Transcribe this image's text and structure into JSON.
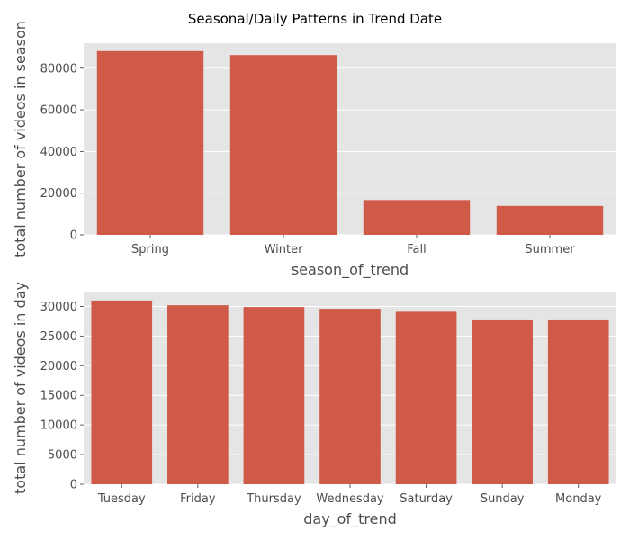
{
  "figure": {
    "title": "Seasonal/Daily Patterns in Trend Date",
    "bar_color": "#cf5a47",
    "background_color": "#e5e5e5",
    "grid_color": "#ffffff"
  },
  "chart_data": [
    {
      "type": "bar",
      "categories": [
        "Spring",
        "Winter",
        "Fall",
        "Summer"
      ],
      "values": [
        88200,
        86300,
        16700,
        13900
      ],
      "xlabel": "season_of_trend",
      "ylabel": "total number of videos in season",
      "ylim": [
        0,
        92000
      ],
      "yticks": [
        0,
        20000,
        40000,
        60000,
        80000
      ],
      "grid": true
    },
    {
      "type": "bar",
      "categories": [
        "Tuesday",
        "Friday",
        "Thursday",
        "Wednesday",
        "Saturday",
        "Sunday",
        "Monday"
      ],
      "values": [
        31000,
        30200,
        29900,
        29600,
        29100,
        27800,
        27800
      ],
      "xlabel": "day_of_trend",
      "ylabel": "total number of videos in day",
      "ylim": [
        0,
        32500
      ],
      "yticks": [
        0,
        5000,
        10000,
        15000,
        20000,
        25000,
        30000
      ],
      "grid": true
    }
  ]
}
